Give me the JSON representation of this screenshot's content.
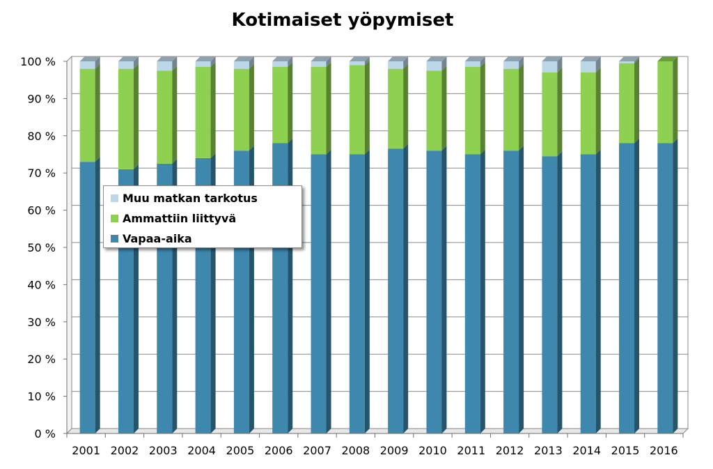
{
  "chart_data": {
    "type": "bar",
    "stacked": true,
    "title": "Kotimaiset yöpymiset",
    "xlabel": "",
    "ylabel": "",
    "ylim": [
      0,
      100
    ],
    "y_ticks": [
      "0 %",
      "10 %",
      "20 %",
      "30 %",
      "40 %",
      "50 %",
      "60 %",
      "70 %",
      "80 %",
      "90 %",
      "100 %"
    ],
    "grid": true,
    "legend_position": "center-left",
    "categories": [
      "2001",
      "2002",
      "2003",
      "2004",
      "2005",
      "2006",
      "2007",
      "2008",
      "2009",
      "2010",
      "2011",
      "2012",
      "2013",
      "2014",
      "2015",
      "2016"
    ],
    "series": [
      {
        "name": "Vapaa-aika",
        "color": "#3e87ad",
        "values": [
          73,
          71,
          72.5,
          74,
          76,
          78,
          75,
          75,
          76.5,
          76,
          75,
          76,
          74.5,
          75,
          78,
          78
        ]
      },
      {
        "name": "Ammattiin liittyvä",
        "color": "#8ed150",
        "values": [
          25,
          27,
          25,
          24.5,
          22,
          20.5,
          23.5,
          24,
          21.5,
          21.5,
          23.5,
          22,
          22.5,
          22,
          21.5,
          22
        ]
      },
      {
        "name": "Muu matkan tarkotus",
        "color": "#bcd7e8",
        "values": [
          2,
          2,
          2.5,
          1.5,
          2,
          1.5,
          1.5,
          1,
          2,
          2.5,
          1.5,
          2,
          3,
          3,
          0.5,
          0
        ]
      }
    ],
    "legend_order": [
      2,
      1,
      0
    ]
  }
}
